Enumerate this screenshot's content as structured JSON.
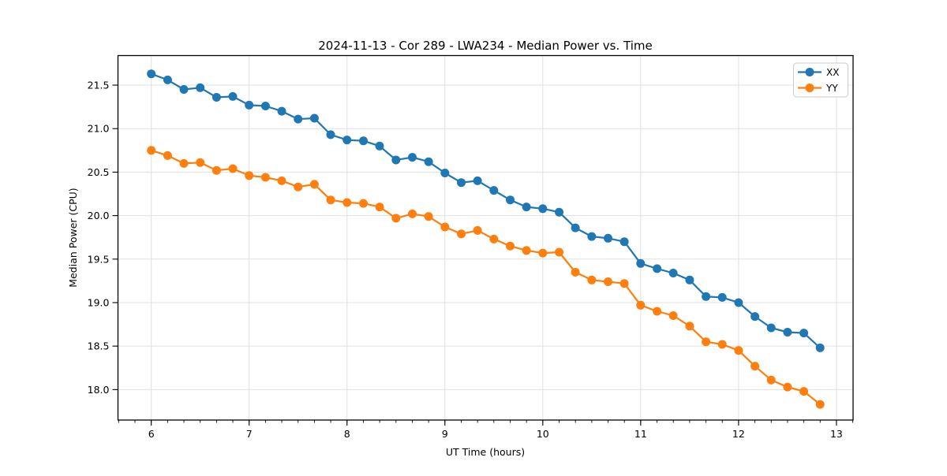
{
  "figure": {
    "window_background": "#ffffff"
  },
  "chart_data": {
    "type": "line",
    "title": "2024-11-13 - Cor 289 - LWA234 - Median Power vs. Time",
    "xlabel": "UT Time (hours)",
    "ylabel": "Median Power (CPU)",
    "xlim": [
      5.66,
      13.17
    ],
    "ylim": [
      17.65,
      21.84
    ],
    "x_ticks": [
      6,
      7,
      8,
      9,
      10,
      11,
      12,
      13
    ],
    "x_minor_tick_interval": 0.16667,
    "y_ticks": [
      18.0,
      18.5,
      19.0,
      19.5,
      20.0,
      20.5,
      21.0,
      21.5
    ],
    "grid": true,
    "grid_color": "#e0e0e0",
    "spine_color": "#000000",
    "legend_position": "upper right",
    "marker": "o",
    "x": [
      6.0,
      6.167,
      6.333,
      6.5,
      6.667,
      6.833,
      7.0,
      7.167,
      7.333,
      7.5,
      7.667,
      7.833,
      8.0,
      8.167,
      8.333,
      8.5,
      8.667,
      8.833,
      9.0,
      9.167,
      9.333,
      9.5,
      9.667,
      9.833,
      10.0,
      10.167,
      10.333,
      10.5,
      10.667,
      10.833,
      11.0,
      11.167,
      11.333,
      11.5,
      11.667,
      11.833,
      12.0,
      12.167,
      12.333,
      12.5,
      12.667,
      12.833
    ],
    "series": [
      {
        "name": "XX",
        "color": "#1f77b4",
        "values": [
          21.63,
          21.56,
          21.45,
          21.47,
          21.36,
          21.37,
          21.27,
          21.26,
          21.2,
          21.11,
          21.12,
          20.93,
          20.87,
          20.86,
          20.8,
          20.64,
          20.67,
          20.62,
          20.49,
          20.38,
          20.4,
          20.29,
          20.18,
          20.1,
          20.08,
          20.04,
          19.86,
          19.76,
          19.74,
          19.7,
          19.45,
          19.39,
          19.34,
          19.26,
          19.07,
          19.06,
          19.0,
          18.84,
          18.71,
          18.66,
          18.65,
          18.48
        ]
      },
      {
        "name": "YY",
        "color": "#ff7f0e",
        "values": [
          20.75,
          20.69,
          20.6,
          20.61,
          20.52,
          20.54,
          20.46,
          20.44,
          20.4,
          20.33,
          20.36,
          20.18,
          20.15,
          20.14,
          20.1,
          19.97,
          20.02,
          19.99,
          19.87,
          19.79,
          19.83,
          19.73,
          19.65,
          19.6,
          19.57,
          19.58,
          19.35,
          19.26,
          19.24,
          19.22,
          18.97,
          18.9,
          18.85,
          18.73,
          18.55,
          18.52,
          18.45,
          18.27,
          18.11,
          18.03,
          17.98,
          17.83
        ]
      }
    ]
  }
}
